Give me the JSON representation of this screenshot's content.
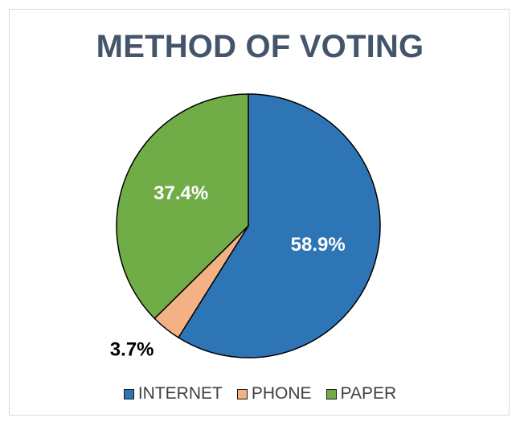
{
  "chart_data": {
    "type": "pie",
    "title": "METHOD OF VOTING",
    "categories": [
      "INTERNET",
      "PHONE",
      "PAPER"
    ],
    "values": [
      58.9,
      3.7,
      37.4
    ],
    "labels": [
      "58.9%",
      "3.7%",
      "37.4%"
    ],
    "colors": [
      "#2e75b6",
      "#f4b183",
      "#70ad47"
    ],
    "legend": "bottom"
  }
}
